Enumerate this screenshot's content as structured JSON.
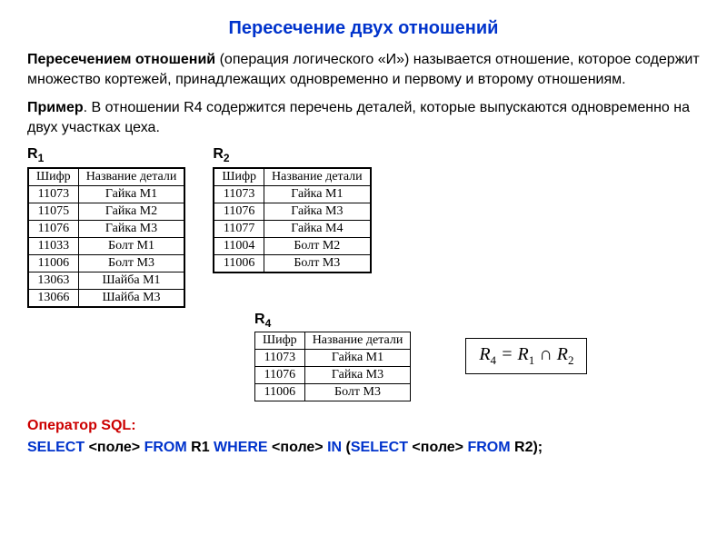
{
  "title": "Пересечение двух отношений",
  "para1_bold": "Пересечением отношений",
  "para1_rest": " (операция логического «И») называется отношение, которое содержит множество кортежей, принадлежащих одновременно и первому и второму отношениям.",
  "para2_bold": "Пример",
  "para2_rest": ". В отношении R4 содержится перечень деталей, которые выпускаются одновременно на двух участках цеха.",
  "header_code": "Шифр",
  "header_name": "Название детали",
  "r1_label": "R",
  "r1_sub": "1",
  "r1": [
    [
      "11073",
      "Гайка М1"
    ],
    [
      "11075",
      "Гайка М2"
    ],
    [
      "11076",
      "Гайка М3"
    ],
    [
      "11033",
      "Болт М1"
    ],
    [
      "11006",
      "Болт М3"
    ],
    [
      "13063",
      "Шайба М1"
    ],
    [
      "13066",
      "Шайба М3"
    ]
  ],
  "r2_label": "R",
  "r2_sub": "2",
  "r2": [
    [
      "11073",
      "Гайка М1"
    ],
    [
      "11076",
      "Гайка М3"
    ],
    [
      "11077",
      "Гайка М4"
    ],
    [
      "11004",
      "Болт М2"
    ],
    [
      "11006",
      "Болт М3"
    ]
  ],
  "r4_label": "R",
  "r4_sub": "4",
  "r4": [
    [
      "11073",
      "Гайка М1"
    ],
    [
      "11076",
      "Гайка М3"
    ],
    [
      "11006",
      "Болт М3"
    ]
  ],
  "formula_lhs": "R",
  "formula_lhs_sub": "4",
  "formula_eq": " = ",
  "formula_r1": "R",
  "formula_r1_sub": "1",
  "formula_cap": " ∩ ",
  "formula_r2": "R",
  "formula_r2_sub": "2",
  "sql_header": "Оператор SQL:",
  "sql": {
    "select": "SELECT",
    "field1": " <поле> ",
    "from": "FROM",
    "r1": " R1 ",
    "where": "WHERE",
    "field2": " <поле> ",
    "in": "IN",
    "open": " (",
    "select2": "SELECT",
    "field3": " <поле> ",
    "from2": "FROM",
    "r2": " R2);"
  }
}
